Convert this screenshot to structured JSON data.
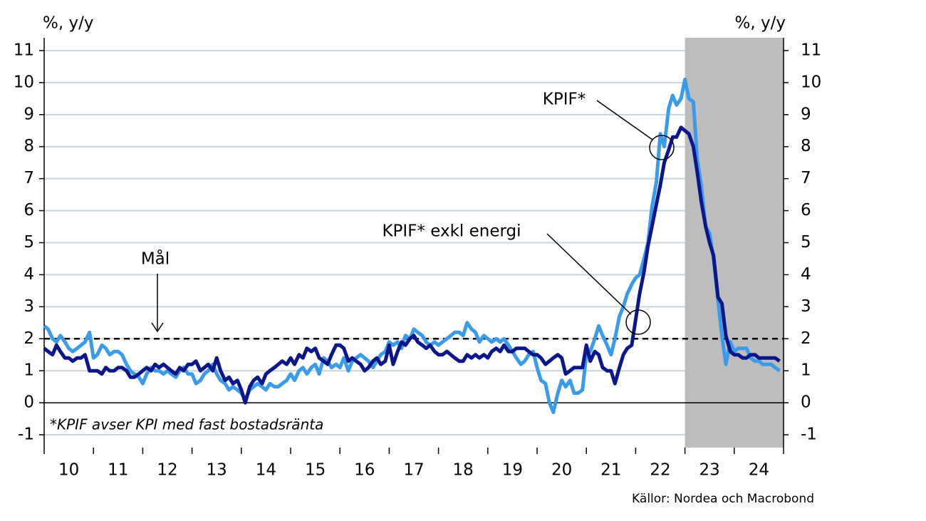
{
  "chart_data": {
    "type": "line",
    "y_label_left": "%, y/y",
    "y_label_right": "%, y/y",
    "footnote": "*KPIF avser KPI med fast bostadsränta",
    "source": "Källor: Nordea och Macrobond",
    "annotations": [
      "Mål",
      "KPIF*",
      "KPIF* exkl energi"
    ],
    "target": 2,
    "shaded_region": [
      23,
      25
    ],
    "xlim": [
      10,
      25
    ],
    "xtick_marks": [
      10,
      11,
      12,
      13,
      14,
      15,
      16,
      17,
      18,
      19,
      20,
      21,
      22,
      23,
      24,
      25
    ],
    "xticks": [
      {
        "value": 10.5,
        "label": "10"
      },
      {
        "value": 11.5,
        "label": "11"
      },
      {
        "value": 12.5,
        "label": "12"
      },
      {
        "value": 13.5,
        "label": "13"
      },
      {
        "value": 14.5,
        "label": "14"
      },
      {
        "value": 15.5,
        "label": "15"
      },
      {
        "value": 16.5,
        "label": "16"
      },
      {
        "value": 17.5,
        "label": "17"
      },
      {
        "value": 18.5,
        "label": "18"
      },
      {
        "value": 19.5,
        "label": "19"
      },
      {
        "value": 20.5,
        "label": "20"
      },
      {
        "value": 21.5,
        "label": "21"
      },
      {
        "value": 22.5,
        "label": "22"
      },
      {
        "value": 23.5,
        "label": "23"
      },
      {
        "value": 24.5,
        "label": "24"
      }
    ],
    "ylim": [
      -1.4,
      11.4
    ],
    "yticks": [
      -1,
      0,
      1,
      2,
      3,
      4,
      5,
      6,
      7,
      8,
      9,
      10,
      11
    ],
    "grid": true,
    "x": [
      10,
      10.08,
      10.17,
      10.25,
      10.33,
      10.42,
      10.5,
      10.58,
      10.67,
      10.75,
      10.83,
      10.92,
      11,
      11.08,
      11.17,
      11.25,
      11.33,
      11.42,
      11.5,
      11.58,
      11.67,
      11.75,
      11.83,
      11.92,
      12,
      12.08,
      12.17,
      12.25,
      12.33,
      12.42,
      12.5,
      12.58,
      12.67,
      12.75,
      12.83,
      12.92,
      13,
      13.08,
      13.17,
      13.25,
      13.33,
      13.42,
      13.5,
      13.58,
      13.67,
      13.75,
      13.83,
      13.92,
      14,
      14.08,
      14.17,
      14.25,
      14.33,
      14.42,
      14.5,
      14.58,
      14.67,
      14.75,
      14.83,
      14.92,
      15,
      15.08,
      15.17,
      15.25,
      15.33,
      15.42,
      15.5,
      15.58,
      15.67,
      15.75,
      15.83,
      15.92,
      16,
      16.08,
      16.17,
      16.25,
      16.33,
      16.42,
      16.5,
      16.58,
      16.67,
      16.75,
      16.83,
      16.92,
      17,
      17.08,
      17.17,
      17.25,
      17.33,
      17.42,
      17.5,
      17.58,
      17.67,
      17.75,
      17.83,
      17.92,
      18,
      18.08,
      18.17,
      18.25,
      18.33,
      18.42,
      18.5,
      18.58,
      18.67,
      18.75,
      18.83,
      18.92,
      19,
      19.08,
      19.17,
      19.25,
      19.33,
      19.42,
      19.5,
      19.58,
      19.67,
      19.75,
      19.83,
      19.92,
      20,
      20.08,
      20.17,
      20.25,
      20.33,
      20.42,
      20.5,
      20.58,
      20.67,
      20.75,
      20.83,
      20.92,
      21,
      21.08,
      21.17,
      21.25,
      21.33,
      21.42,
      21.5,
      21.58,
      21.67,
      21.75,
      21.83,
      21.92,
      22,
      22.08,
      22.17,
      22.25,
      22.33,
      22.42,
      22.5,
      22.58,
      22.67,
      22.75,
      22.83,
      22.92,
      23,
      23.08,
      23.17,
      23.25,
      23.33,
      23.42,
      23.5,
      23.58,
      23.67,
      23.75,
      23.83,
      23.92,
      24,
      24.08,
      24.17,
      24.25,
      24.33,
      24.42,
      24.5,
      24.58,
      24.67,
      24.75,
      24.83,
      24.92
    ],
    "series": [
      {
        "name": "KPIF*",
        "color": "#3a9bea",
        "values": [
          2.4,
          2.3,
          2.0,
          1.9,
          2.1,
          1.9,
          1.7,
          1.6,
          1.7,
          1.8,
          1.9,
          2.2,
          1.4,
          1.5,
          1.8,
          1.7,
          1.5,
          1.6,
          1.6,
          1.5,
          1.2,
          1.0,
          0.9,
          0.8,
          0.6,
          0.9,
          1.1,
          1.0,
          1.0,
          0.9,
          1.0,
          0.9,
          0.8,
          1.0,
          1.1,
          0.9,
          0.9,
          0.6,
          0.7,
          0.9,
          1.0,
          1.2,
          0.9,
          0.7,
          0.6,
          0.4,
          0.5,
          0.4,
          0.3,
          0.1,
          0.4,
          0.5,
          0.6,
          0.5,
          0.4,
          0.6,
          0.5,
          0.5,
          0.6,
          0.7,
          0.9,
          0.7,
          1.0,
          1.1,
          0.9,
          1.1,
          1.2,
          0.9,
          1.4,
          1.3,
          1.1,
          1.2,
          1.1,
          1.4,
          1.0,
          1.3,
          1.4,
          1.5,
          1.4,
          1.3,
          1.1,
          1.3,
          1.5,
          1.6,
          1.9,
          1.8,
          1.9,
          1.7,
          2.1,
          2.0,
          2.3,
          2.2,
          2.1,
          1.9,
          1.8,
          1.9,
          1.8,
          1.9,
          2.0,
          2.1,
          2.2,
          2.2,
          2.1,
          2.5,
          2.3,
          2.2,
          1.9,
          2.1,
          2.0,
          1.9,
          2.0,
          1.9,
          2.0,
          1.8,
          1.6,
          1.4,
          1.2,
          1.3,
          1.5,
          1.6,
          1.1,
          0.7,
          0.6,
          0.0,
          -0.3,
          0.3,
          0.7,
          0.5,
          0.7,
          0.3,
          0.3,
          0.4,
          1.5,
          1.6,
          2.0,
          2.4,
          2.1,
          1.8,
          1.5,
          2.0,
          2.7,
          3.0,
          3.4,
          3.7,
          3.9,
          4.0,
          4.5,
          5.0,
          6.1,
          6.9,
          8.4,
          8.0,
          9.2,
          9.6,
          9.3,
          9.5,
          10.1,
          9.5,
          9.4,
          7.6,
          6.8,
          5.5,
          5.3,
          4.5,
          3.2,
          2.1,
          1.2,
          1.9,
          1.6,
          1.7,
          1.7,
          1.7,
          1.4,
          1.3,
          1.3,
          1.2,
          1.2,
          1.2,
          1.1,
          1.0
        ]
      },
      {
        "name": "KPIF* exkl energi",
        "color": "#0b168a",
        "values": [
          1.7,
          1.6,
          1.5,
          1.8,
          1.6,
          1.4,
          1.4,
          1.3,
          1.4,
          1.4,
          1.5,
          1.0,
          1.0,
          1.0,
          0.9,
          1.1,
          1.0,
          1.0,
          1.1,
          1.1,
          1.0,
          0.8,
          0.8,
          0.9,
          1.0,
          1.1,
          1.0,
          1.2,
          1.1,
          1.2,
          1.1,
          1.0,
          0.9,
          1.1,
          1.0,
          1.2,
          1.2,
          1.3,
          1.0,
          1.1,
          1.2,
          1.0,
          1.4,
          1.0,
          0.7,
          0.8,
          0.6,
          0.7,
          0.4,
          0.0,
          0.5,
          0.7,
          0.8,
          0.6,
          0.9,
          1.0,
          1.1,
          1.2,
          1.3,
          1.2,
          1.4,
          1.2,
          1.5,
          1.4,
          1.7,
          1.6,
          1.7,
          1.4,
          1.3,
          1.2,
          1.5,
          1.8,
          1.8,
          1.7,
          1.3,
          1.4,
          1.3,
          1.2,
          1.0,
          1.1,
          1.3,
          1.4,
          1.2,
          1.3,
          1.8,
          1.2,
          1.6,
          1.9,
          1.8,
          2.0,
          2.1,
          1.9,
          1.8,
          1.7,
          1.8,
          1.6,
          1.5,
          1.5,
          1.6,
          1.5,
          1.4,
          1.3,
          1.3,
          1.5,
          1.4,
          1.5,
          1.4,
          1.5,
          1.4,
          1.6,
          1.7,
          1.6,
          1.8,
          1.6,
          1.6,
          1.7,
          1.7,
          1.7,
          1.6,
          1.5,
          1.5,
          1.4,
          1.2,
          1.3,
          1.4,
          1.5,
          1.4,
          0.9,
          1.0,
          1.1,
          1.1,
          1.1,
          1.8,
          1.3,
          1.6,
          1.5,
          1.1,
          1.0,
          1.0,
          0.6,
          1.1,
          1.5,
          1.7,
          1.8,
          2.6,
          3.4,
          4.1,
          4.9,
          5.5,
          6.2,
          6.8,
          7.5,
          7.9,
          8.3,
          8.3,
          8.6,
          8.5,
          8.4,
          8.0,
          7.2,
          6.3,
          5.5,
          5.0,
          4.6,
          3.3,
          3.1,
          2.1,
          1.6,
          1.5,
          1.5,
          1.4,
          1.4,
          1.5,
          1.5,
          1.4,
          1.4,
          1.4,
          1.4,
          1.4,
          1.3
        ]
      }
    ]
  }
}
